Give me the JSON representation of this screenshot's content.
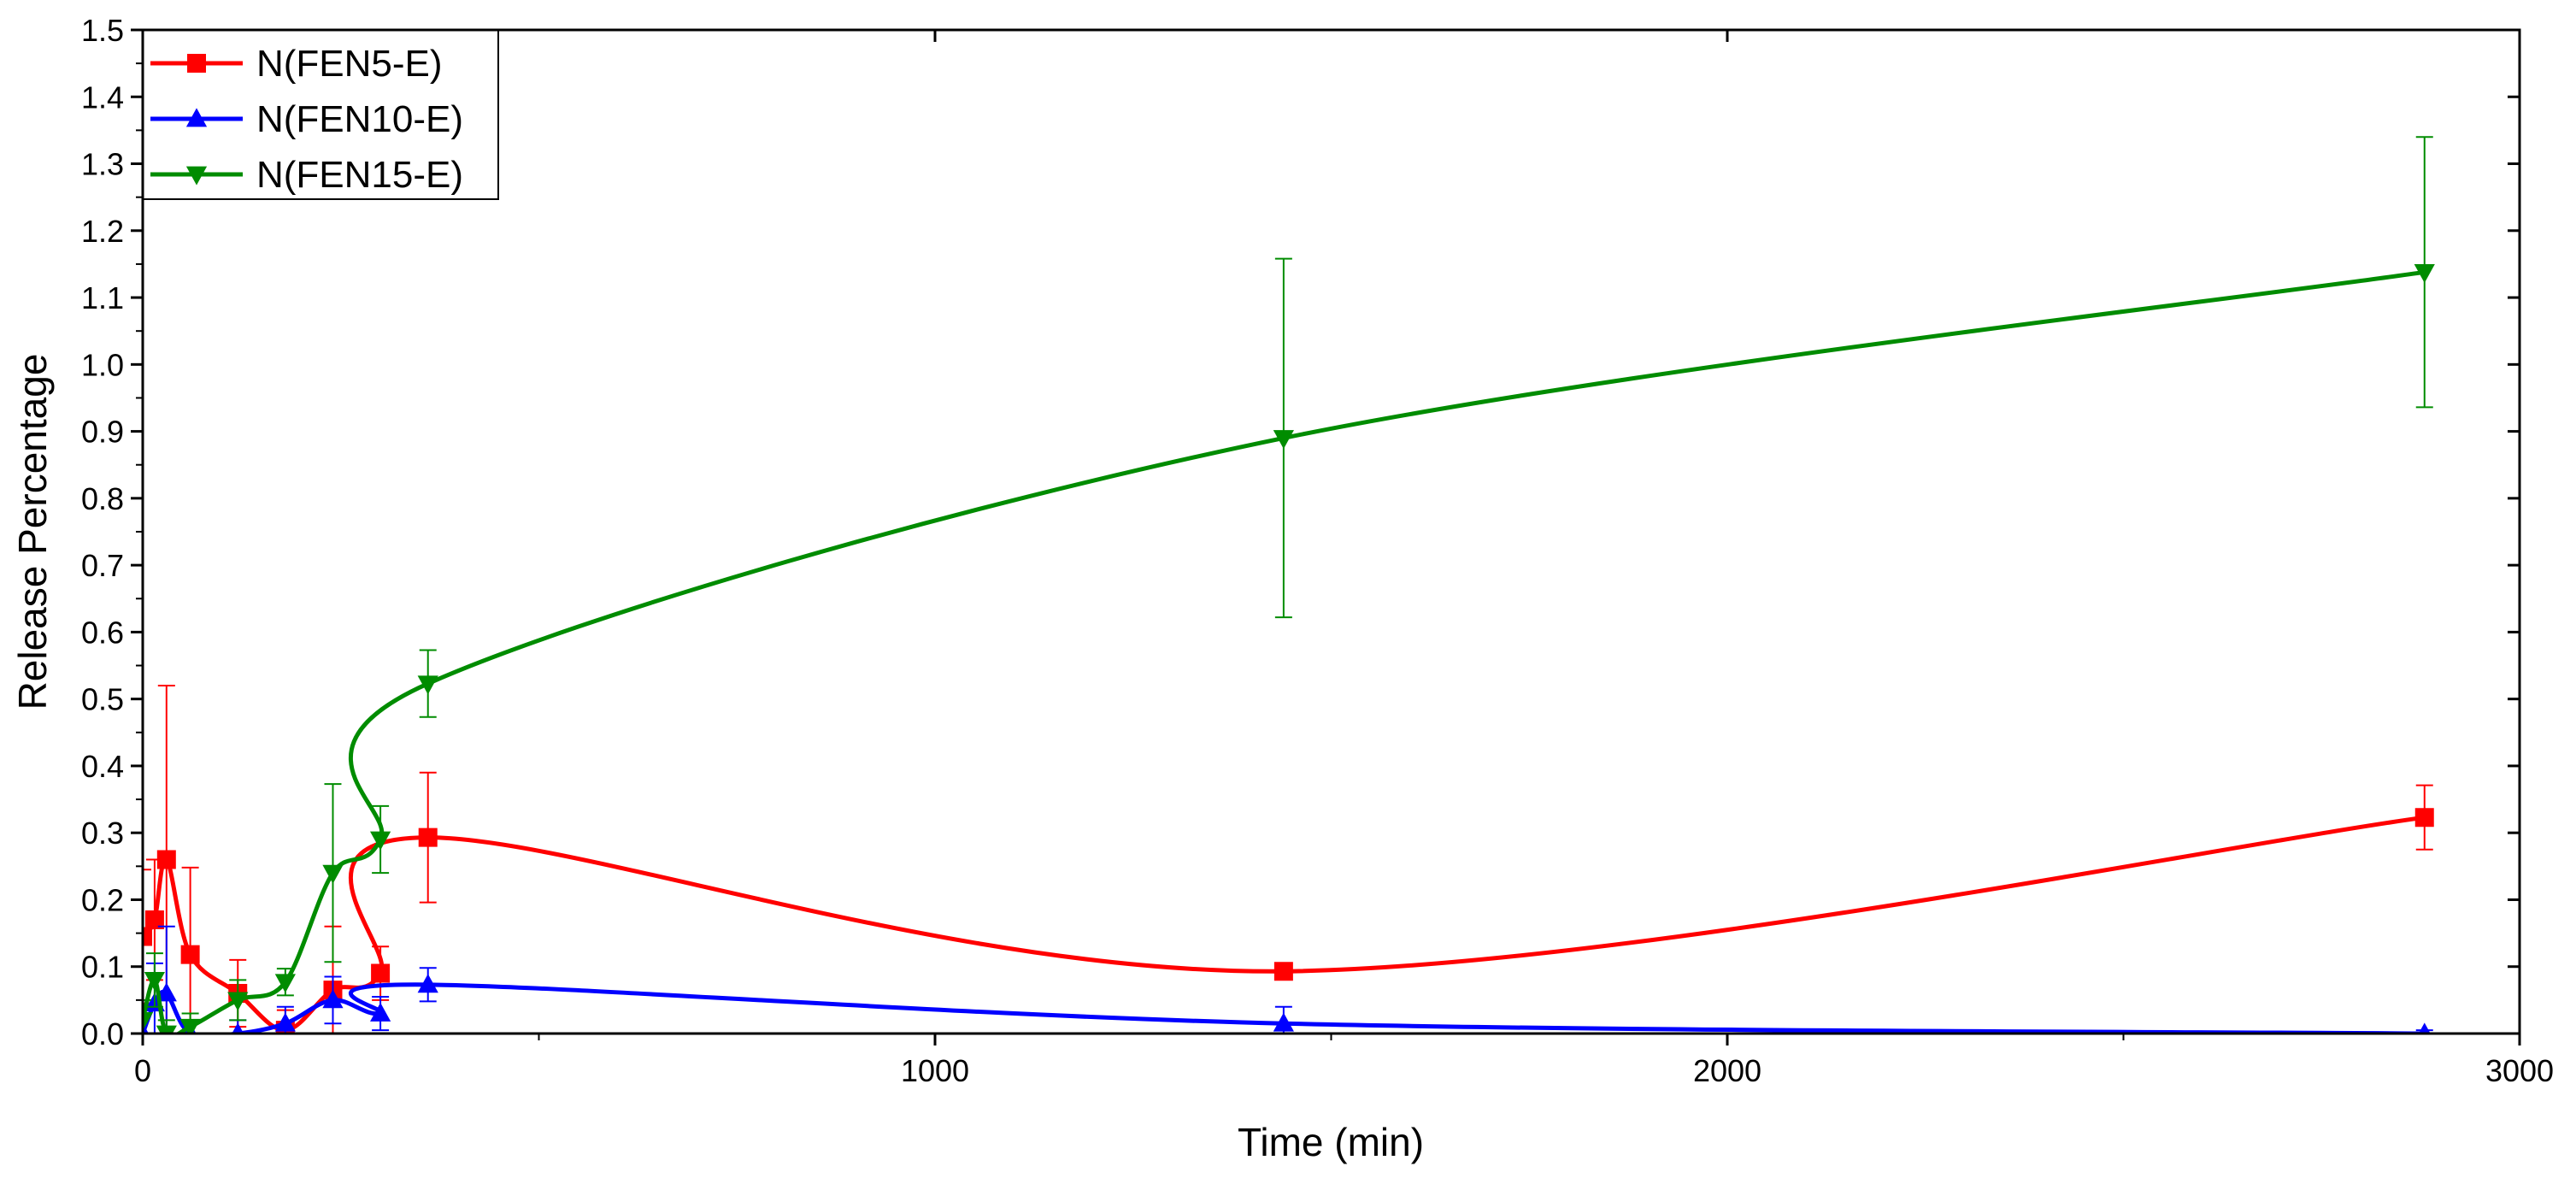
{
  "chart_data": {
    "type": "line",
    "title": "",
    "xlabel": "Time (min)",
    "ylabel": "Release Percentage",
    "xlim": [
      0,
      3000
    ],
    "ylim": [
      0,
      1.5
    ],
    "x_ticks": [
      0,
      1000,
      2000,
      3000
    ],
    "x_tick_labels": [
      "0",
      "1000",
      "2000",
      "3000"
    ],
    "y_ticks": [
      0,
      0.1,
      0.2,
      0.3,
      0.4,
      0.5,
      0.6,
      0.7,
      0.8,
      0.9,
      1.0,
      1.1,
      1.2,
      1.3,
      1.4,
      1.5
    ],
    "y_tick_labels": [
      "0.0",
      "0.1",
      "0.2",
      "0.3",
      "0.4",
      "0.5",
      "0.6",
      "0.7",
      "0.8",
      "0.9",
      "1.0",
      "1.1",
      "1.2",
      "1.3",
      "1.4",
      "1.5"
    ],
    "grid": false,
    "legend_position": "top-left",
    "series": [
      {
        "name": "N(FEN5-E)",
        "color": "#ff0000",
        "marker": "square",
        "x": [
          0,
          15,
          30,
          60,
          120,
          180,
          240,
          300,
          360,
          1440,
          2880
        ],
        "y": [
          0.145,
          0.17,
          0.26,
          0.118,
          0.06,
          0.005,
          0.065,
          0.09,
          0.293,
          0.093,
          0.323
        ],
        "err": [
          0.1,
          0.09,
          0.26,
          0.13,
          0.05,
          0.03,
          0.095,
          0.04,
          0.097,
          0.01,
          0.048
        ]
      },
      {
        "name": "N(FEN10-E)",
        "color": "#0000ff",
        "marker": "triangle-up",
        "x": [
          0,
          15,
          30,
          60,
          120,
          180,
          240,
          300,
          360,
          1440,
          2880
        ],
        "y": [
          0.0,
          0.045,
          0.06,
          0.0,
          0.0,
          0.015,
          0.05,
          0.03,
          0.073,
          0.015,
          0.0
        ],
        "err": [
          0.03,
          0.06,
          0.1,
          0.02,
          0.02,
          0.025,
          0.035,
          0.025,
          0.025,
          0.025,
          0.005
        ]
      },
      {
        "name": "N(FEN15-E)",
        "color": "#008c00",
        "marker": "triangle-down",
        "x": [
          0,
          15,
          30,
          60,
          120,
          180,
          240,
          300,
          360,
          1440,
          2880
        ],
        "y": [
          0.02,
          0.08,
          0.0,
          0.01,
          0.05,
          0.077,
          0.24,
          0.29,
          0.523,
          0.89,
          1.138
        ],
        "err": [
          0.03,
          0.04,
          0.02,
          0.02,
          0.03,
          0.02,
          0.133,
          0.05,
          0.05,
          0.268,
          0.202
        ]
      }
    ]
  }
}
